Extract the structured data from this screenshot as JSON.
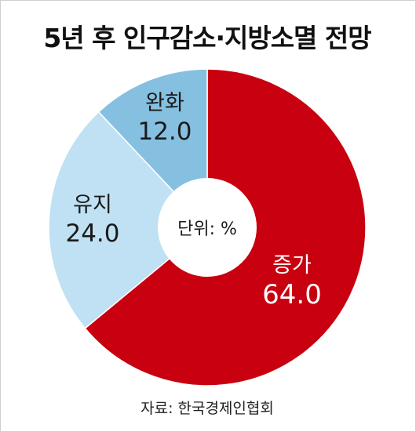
{
  "title": "5년 후 인구감소·지방소멸 전망",
  "unit_label": "단위: %",
  "source": "자료: 한국경제인협회",
  "colors": {
    "increase": "#c8000f",
    "maintain": "#bfe1f3",
    "ease": "#86c0e0",
    "label_light": "#ffffff",
    "label_dark": "#1a1a1a"
  },
  "chart_data": {
    "type": "pie",
    "title": "5년 후 인구감소·지방소멸 전망",
    "unit": "%",
    "categories": [
      "증가",
      "유지",
      "완화"
    ],
    "values": [
      64.0,
      24.0,
      12.0
    ],
    "value_labels": [
      "64.0",
      "24.0",
      "12.0"
    ],
    "donut": true,
    "start": "12 o'clock",
    "direction": "clockwise"
  }
}
